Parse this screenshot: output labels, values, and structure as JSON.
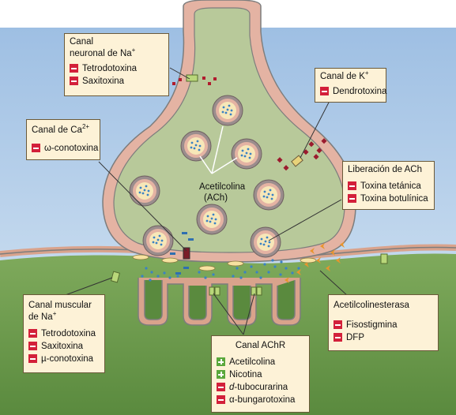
{
  "labels": {
    "na_neuronal": {
      "title": "Canal",
      "title2": "neuronal de Na",
      "sup": "+",
      "items": [
        {
          "text": "Tetrodotoxina",
          "sign": "neg"
        },
        {
          "text": "Saxitoxina",
          "sign": "neg"
        }
      ]
    },
    "k_channel": {
      "title": "Canal de K",
      "sup": "+",
      "items": [
        {
          "text": "Dendrotoxina",
          "sign": "neg"
        }
      ]
    },
    "ca_channel": {
      "title": "Canal de Ca",
      "sup": "2+",
      "items": [
        {
          "text": "ω-conotoxina",
          "sign": "neg"
        }
      ]
    },
    "ach_release": {
      "title": "Liberación de ACh",
      "items": [
        {
          "text": "Toxina tetánica",
          "sign": "neg"
        },
        {
          "text": "Toxina botulínica",
          "sign": "neg"
        }
      ]
    },
    "na_muscular": {
      "title": "Canal muscular",
      "title2": "de Na",
      "sup": "+",
      "items": [
        {
          "text": "Tetrodotoxina",
          "sign": "neg"
        },
        {
          "text": "Saxitoxina",
          "sign": "neg"
        },
        {
          "text": "µ-conotoxina",
          "sign": "neg"
        }
      ]
    },
    "achr": {
      "title": "Canal AChR",
      "items": [
        {
          "text": "Acetilcolina",
          "sign": "pos"
        },
        {
          "text": "Nicotina",
          "sign": "pos"
        },
        {
          "text": "-tubocurarina",
          "prefix": "d",
          "sign": "neg"
        },
        {
          "text": "α-bungarotoxina",
          "sign": "neg"
        }
      ]
    },
    "ache": {
      "title": "Acetilcolinesterasa",
      "items": [
        {
          "text": "Fisostigmina",
          "sign": "neg"
        },
        {
          "text": "DFP",
          "sign": "neg"
        }
      ]
    }
  },
  "vesicle_label": {
    "line1": "Acetilcolina",
    "line2": "(ACh)"
  },
  "colors": {
    "background_blue": "#a8c6e6",
    "muscle_green": "#6b9a4c",
    "terminal_fill": "#b8c99a",
    "membrane": "#8a8a8a",
    "membrane_pink": "#e6b4a0",
    "label_bg": "#fdf2d7",
    "inhibitor": "#d3203a",
    "activator": "#5aa83c",
    "ach_dots": "#3b82c4",
    "toxin_red": "#b01c2e",
    "ache_orange": "#e8952c"
  }
}
